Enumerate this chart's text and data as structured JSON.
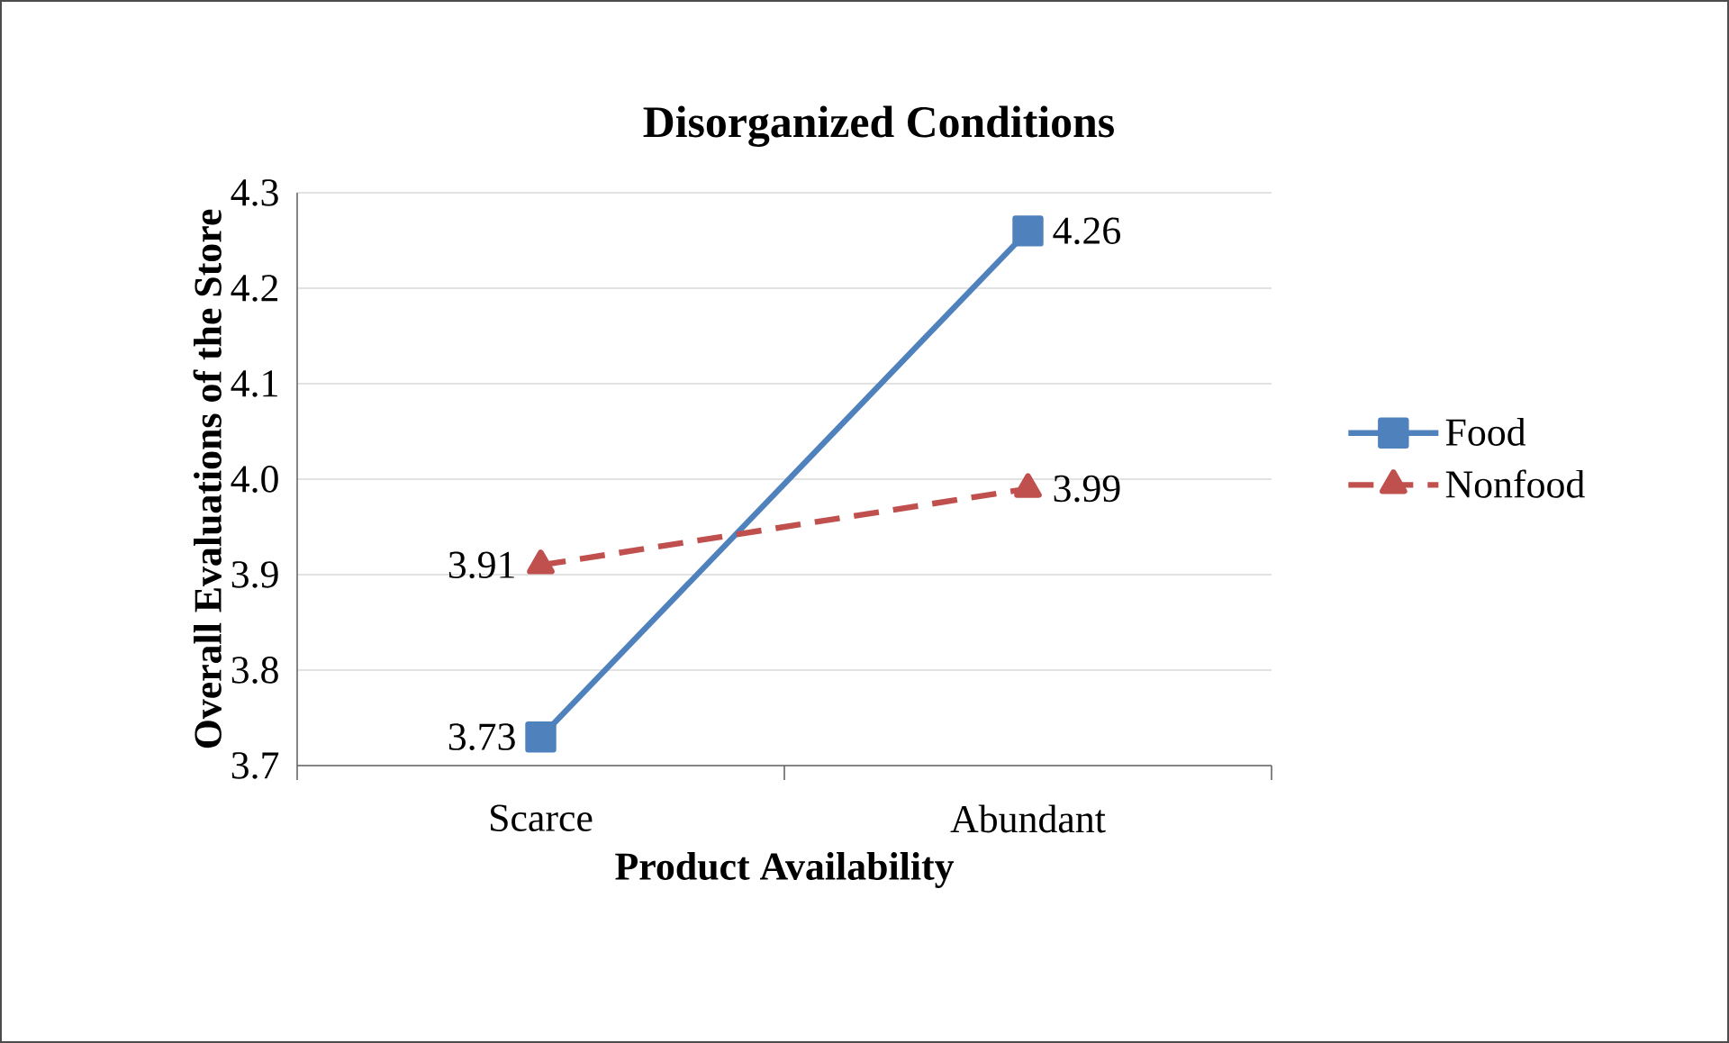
{
  "chart_data": {
    "type": "line",
    "title": "Disorganized Conditions",
    "xlabel": "Product Availability",
    "ylabel": "Overall Evaluations of the Store",
    "categories": [
      "Scarce",
      "Abundant"
    ],
    "series": [
      {
        "name": "Food",
        "color": "#4f81bd",
        "values": [
          3.73,
          4.26
        ],
        "marker": "square",
        "line_style": "solid"
      },
      {
        "name": "Nonfood",
        "color": "#c0504d",
        "values": [
          3.91,
          3.99
        ],
        "marker": "triangle",
        "line_style": "dashed"
      }
    ],
    "ylim": [
      3.7,
      4.3
    ],
    "yticks": [
      3.7,
      3.8,
      3.9,
      {
        "value": 4.0,
        "label": "4.0"
      },
      4.1,
      4.2,
      4.3
    ],
    "grid": "y",
    "legend": "right",
    "data_labels": true
  }
}
